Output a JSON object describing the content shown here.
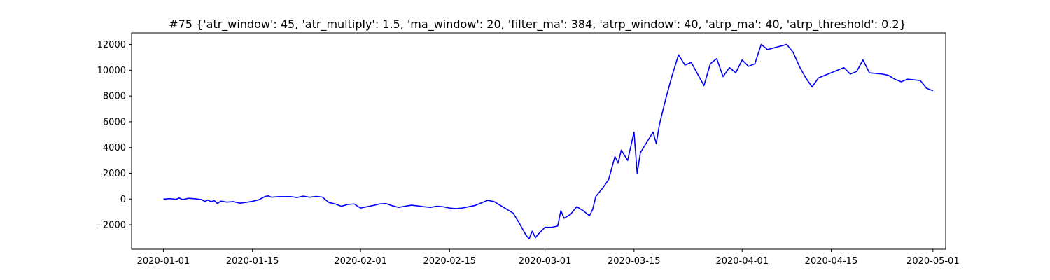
{
  "chart_data": {
    "type": "line",
    "title": "#75 {'atr_window': 45, 'atr_multiply': 1.5, 'ma_window': 20, 'filter_ma': 384, 'atrp_window': 40, 'atrp_ma': 40, 'atrp_threshold': 0.2}",
    "xlabel": "",
    "ylabel": "",
    "xlim": [
      "2019-12-27",
      "2020-05-03"
    ],
    "ylim": [
      -3900,
      12900
    ],
    "x_ticks": [
      "2020-01-01",
      "2020-01-15",
      "2020-02-01",
      "2020-02-15",
      "2020-03-01",
      "2020-03-15",
      "2020-04-01",
      "2020-04-15",
      "2020-05-01"
    ],
    "y_ticks": [
      -2000,
      0,
      2000,
      4000,
      6000,
      8000,
      10000,
      12000
    ],
    "y_tick_labels": [
      "−2000",
      "0",
      "2000",
      "4000",
      "6000",
      "8000",
      "10000",
      "12000"
    ],
    "grid": false,
    "series": [
      {
        "color": "#0000ff",
        "points": [
          [
            "2020-01-01",
            0
          ],
          [
            "2020-01-02",
            30
          ],
          [
            "2020-01-03",
            -20
          ],
          [
            "2020-01-03.5",
            80
          ],
          [
            "2020-01-04",
            -40
          ],
          [
            "2020-01-05",
            60
          ],
          [
            "2020-01-06",
            20
          ],
          [
            "2020-01-07",
            -40
          ],
          [
            "2020-01-07.5",
            -180
          ],
          [
            "2020-01-08",
            -80
          ],
          [
            "2020-01-08.5",
            -200
          ],
          [
            "2020-01-09",
            -120
          ],
          [
            "2020-01-09.5",
            -350
          ],
          [
            "2020-01-10",
            -160
          ],
          [
            "2020-01-11",
            -240
          ],
          [
            "2020-01-12",
            -200
          ],
          [
            "2020-01-13",
            -320
          ],
          [
            "2020-01-14",
            -260
          ],
          [
            "2020-01-15",
            -180
          ],
          [
            "2020-01-16",
            -60
          ],
          [
            "2020-01-17",
            200
          ],
          [
            "2020-01-17.5",
            240
          ],
          [
            "2020-01-18",
            140
          ],
          [
            "2020-01-19",
            180
          ],
          [
            "2020-01-21",
            190
          ],
          [
            "2020-01-22",
            120
          ],
          [
            "2020-01-23",
            220
          ],
          [
            "2020-01-24",
            140
          ],
          [
            "2020-01-25",
            200
          ],
          [
            "2020-01-26",
            150
          ],
          [
            "2020-01-27",
            -260
          ],
          [
            "2020-01-28",
            -380
          ],
          [
            "2020-01-29",
            -560
          ],
          [
            "2020-01-30",
            -420
          ],
          [
            "2020-01-31",
            -380
          ],
          [
            "2020-02-01",
            -700
          ],
          [
            "2020-02-02",
            -600
          ],
          [
            "2020-02-03",
            -500
          ],
          [
            "2020-02-04",
            -380
          ],
          [
            "2020-02-05",
            -350
          ],
          [
            "2020-02-06",
            -520
          ],
          [
            "2020-02-07",
            -650
          ],
          [
            "2020-02-08",
            -560
          ],
          [
            "2020-02-09",
            -480
          ],
          [
            "2020-02-10",
            -530
          ],
          [
            "2020-02-11",
            -600
          ],
          [
            "2020-02-12",
            -650
          ],
          [
            "2020-02-13",
            -560
          ],
          [
            "2020-02-14",
            -600
          ],
          [
            "2020-02-15",
            -700
          ],
          [
            "2020-02-16",
            -750
          ],
          [
            "2020-02-17",
            -700
          ],
          [
            "2020-02-18",
            -600
          ],
          [
            "2020-02-19",
            -500
          ],
          [
            "2020-02-20",
            -300
          ],
          [
            "2020-02-21",
            -100
          ],
          [
            "2020-02-22",
            -200
          ],
          [
            "2020-02-23",
            -500
          ],
          [
            "2020-02-24",
            -800
          ],
          [
            "2020-02-25",
            -1100
          ],
          [
            "2020-02-26",
            -1900
          ],
          [
            "2020-02-27",
            -2800
          ],
          [
            "2020-02-27.5",
            -3100
          ],
          [
            "2020-02-28",
            -2500
          ],
          [
            "2020-02-28.5",
            -3000
          ],
          [
            "2020-02-29",
            -2700
          ],
          [
            "2020-03-01",
            -2200
          ],
          [
            "2020-03-02",
            -2200
          ],
          [
            "2020-03-03",
            -2100
          ],
          [
            "2020-03-03.5",
            -900
          ],
          [
            "2020-03-04",
            -1500
          ],
          [
            "2020-03-05",
            -1200
          ],
          [
            "2020-03-06",
            -600
          ],
          [
            "2020-03-07",
            -900
          ],
          [
            "2020-03-08",
            -1300
          ],
          [
            "2020-03-08.5",
            -800
          ],
          [
            "2020-03-09",
            200
          ],
          [
            "2020-03-10",
            800
          ],
          [
            "2020-03-11",
            1500
          ],
          [
            "2020-03-12",
            3300
          ],
          [
            "2020-03-12.5",
            2800
          ],
          [
            "2020-03-13",
            3800
          ],
          [
            "2020-03-14",
            3000
          ],
          [
            "2020-03-15",
            5200
          ],
          [
            "2020-03-15.5",
            2000
          ],
          [
            "2020-03-16",
            3600
          ],
          [
            "2020-03-18",
            5200
          ],
          [
            "2020-03-18.5",
            4300
          ],
          [
            "2020-03-19",
            5800
          ],
          [
            "2020-03-20",
            7800
          ],
          [
            "2020-03-21",
            9600
          ],
          [
            "2020-03-22",
            11200
          ],
          [
            "2020-03-23",
            10400
          ],
          [
            "2020-03-24",
            10600
          ],
          [
            "2020-03-26",
            8800
          ],
          [
            "2020-03-27",
            10500
          ],
          [
            "2020-03-28",
            10900
          ],
          [
            "2020-03-29",
            9500
          ],
          [
            "2020-03-30",
            10200
          ],
          [
            "2020-03-31",
            9800
          ],
          [
            "2020-04-01",
            10800
          ],
          [
            "2020-04-02",
            10300
          ],
          [
            "2020-04-03",
            10500
          ],
          [
            "2020-04-04",
            12000
          ],
          [
            "2020-04-05",
            11600
          ],
          [
            "2020-04-08",
            12000
          ],
          [
            "2020-04-09",
            11400
          ],
          [
            "2020-04-10",
            10300
          ],
          [
            "2020-04-11",
            9400
          ],
          [
            "2020-04-12",
            8700
          ],
          [
            "2020-04-13",
            9400
          ],
          [
            "2020-04-17",
            10200
          ],
          [
            "2020-04-18",
            9700
          ],
          [
            "2020-04-19",
            9900
          ],
          [
            "2020-04-20",
            10800
          ],
          [
            "2020-04-21",
            9800
          ],
          [
            "2020-04-23",
            9700
          ],
          [
            "2020-04-24",
            9600
          ],
          [
            "2020-04-25",
            9300
          ],
          [
            "2020-04-26",
            9100
          ],
          [
            "2020-04-27",
            9300
          ],
          [
            "2020-04-29",
            9200
          ],
          [
            "2020-04-30",
            8600
          ],
          [
            "2020-05-01",
            8400
          ]
        ]
      }
    ]
  }
}
